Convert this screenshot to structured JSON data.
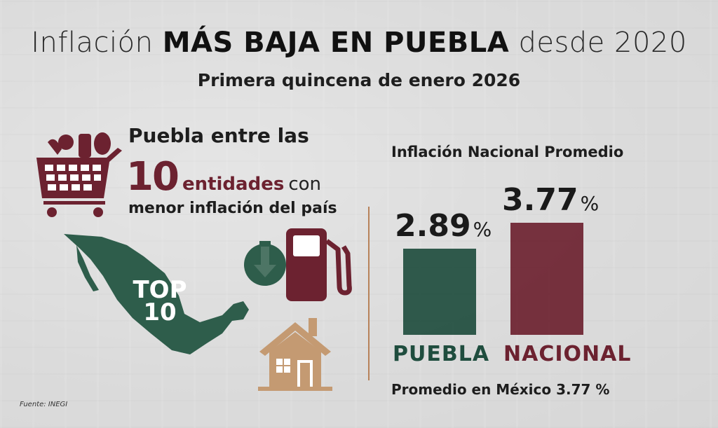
{
  "header": {
    "title_pre": "Inflación",
    "title_bold": "MÁS BAJA EN PUEBLA",
    "title_post": "desde 2020",
    "subtitle": "Primera quincena de enero 2026"
  },
  "left_panel": {
    "line1": "Puebla entre las",
    "big_number": "10",
    "entidades": "entidades",
    "con": "con",
    "line3": "menor inflación del país",
    "map_badge_top": "TOP",
    "map_badge_num": "10"
  },
  "icons": [
    "shopping-basket-icon",
    "mexico-map-icon",
    "down-arrow-icon",
    "fuel-pump-icon",
    "house-icon"
  ],
  "colors": {
    "puebla": "#1f4d3e",
    "nacional": "#6c2230",
    "accent": "#b7825a",
    "house": "#c49a72"
  },
  "chart_data": {
    "type": "bar",
    "title": "Inflación Nacional Promedio",
    "categories": [
      "PUEBLA",
      "NACIONAL"
    ],
    "values": [
      2.89,
      3.77
    ],
    "labels": [
      "2.89",
      "3.77"
    ],
    "unit": "%",
    "ylim": [
      0,
      3.77
    ]
  },
  "footnote": "Promedio en México 3.77 %",
  "source": "Fuente: INEGI"
}
